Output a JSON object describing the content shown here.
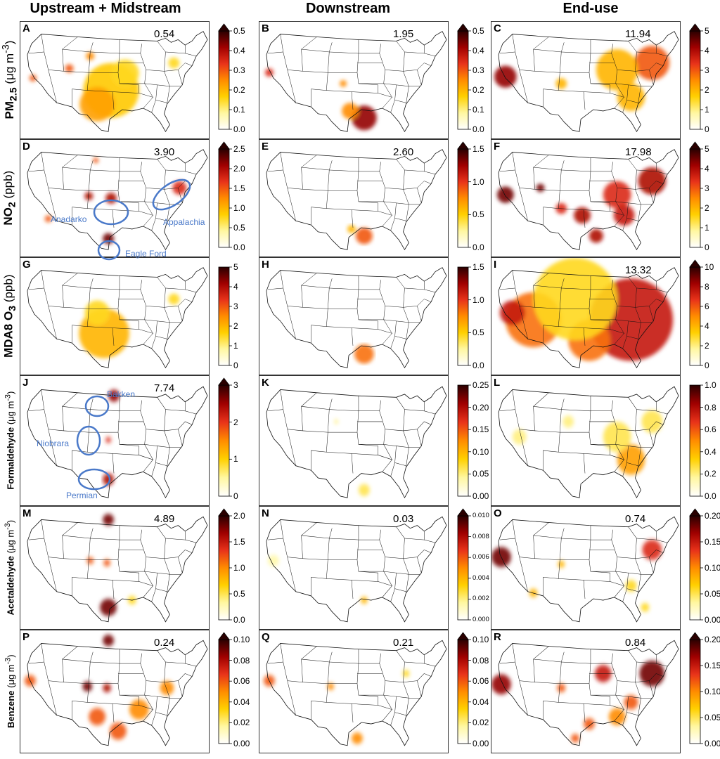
{
  "columns": [
    "Upstream + Midstream",
    "Downstream",
    "End-use"
  ],
  "rows": [
    {
      "label_main": "PM",
      "label_sub": "2.5",
      "label_rest": " (μg m",
      "label_sup": "-3",
      "label_end": ")"
    },
    {
      "label_main": "NO",
      "label_sub": "2",
      "label_rest": " (ppb)",
      "label_sup": "",
      "label_end": ""
    },
    {
      "label_main": "MDA8 O",
      "label_sub": "3",
      "label_rest": " (ppb)",
      "label_sup": "",
      "label_end": ""
    },
    {
      "label_main": "Formaldehyde",
      "label_sub": "",
      "label_rest": " (μg m",
      "label_sup": "-3",
      "label_end": ")"
    },
    {
      "label_main": "Acetaldehyde",
      "label_sub": "",
      "label_rest": " (μg m",
      "label_sup": "-3",
      "label_end": ")"
    },
    {
      "label_main": "Benzene",
      "label_sub": "",
      "label_rest": " (μg m",
      "label_sup": "-3",
      "label_end": ")"
    }
  ],
  "panels": [
    {
      "letter": "A",
      "total": "0.54",
      "ticks": [
        "0.5",
        "0.4",
        "0.3",
        "0.2",
        "0.1",
        "0.0"
      ],
      "arrow": true,
      "small": false
    },
    {
      "letter": "B",
      "total": "1.95",
      "ticks": [
        "0.5",
        "0.4",
        "0.3",
        "0.2",
        "0.1",
        "0.0"
      ],
      "arrow": true,
      "small": false
    },
    {
      "letter": "C",
      "total": "11.94",
      "ticks": [
        "5",
        "4",
        "3",
        "2",
        "1",
        "0"
      ],
      "arrow": true,
      "small": false
    },
    {
      "letter": "D",
      "total": "3.90",
      "ticks": [
        "2.5",
        "2.0",
        "1.5",
        "1.0",
        "0.5",
        "0.0"
      ],
      "arrow": true,
      "small": false
    },
    {
      "letter": "E",
      "total": "2.60",
      "ticks": [
        "1.5",
        "1.0",
        "0.5",
        "0.0"
      ],
      "arrow": true,
      "small": false
    },
    {
      "letter": "F",
      "total": "17.98",
      "ticks": [
        "5",
        "4",
        "3",
        "2",
        "1",
        "0"
      ],
      "arrow": true,
      "small": false
    },
    {
      "letter": "G",
      "total": "",
      "ticks": [
        "5",
        "4",
        "3",
        "2",
        "1",
        "0"
      ],
      "arrow": false,
      "small": false
    },
    {
      "letter": "H",
      "total": "",
      "ticks": [
        "1.5",
        "1.0",
        "0.5",
        "0.0"
      ],
      "arrow": false,
      "small": false
    },
    {
      "letter": "I",
      "total": "13.32",
      "ticks": [
        "10",
        "8",
        "6",
        "4",
        "2",
        "0"
      ],
      "arrow": true,
      "small": false
    },
    {
      "letter": "J",
      "total": "7.74",
      "ticks": [
        "3",
        "2",
        "1",
        "0"
      ],
      "arrow": true,
      "small": false
    },
    {
      "letter": "K",
      "total": "",
      "ticks": [
        "0.25",
        "0.20",
        "0.15",
        "0.10",
        "0.05",
        "0.00"
      ],
      "arrow": false,
      "small": false
    },
    {
      "letter": "L",
      "total": "",
      "ticks": [
        "1.0",
        "0.8",
        "0.6",
        "0.4",
        "0.2",
        "0.0"
      ],
      "arrow": false,
      "small": false
    },
    {
      "letter": "M",
      "total": "4.89",
      "ticks": [
        "2.0",
        "1.5",
        "1.0",
        "0.5",
        "0.0"
      ],
      "arrow": true,
      "small": false
    },
    {
      "letter": "N",
      "total": "0.03",
      "ticks": [
        "0.010",
        "0.008",
        "0.006",
        "0.004",
        "0.002",
        "0.000"
      ],
      "arrow": true,
      "small": true
    },
    {
      "letter": "O",
      "total": "0.74",
      "ticks": [
        "0.20",
        "0.15",
        "0.10",
        "0.05",
        "0.00"
      ],
      "arrow": true,
      "small": false
    },
    {
      "letter": "P",
      "total": "0.24",
      "ticks": [
        "0.10",
        "0.08",
        "0.06",
        "0.04",
        "0.02",
        "0.00"
      ],
      "arrow": true,
      "small": false
    },
    {
      "letter": "Q",
      "total": "0.21",
      "ticks": [
        "0.10",
        "0.08",
        "0.06",
        "0.04",
        "0.02",
        "0.00"
      ],
      "arrow": true,
      "small": false
    },
    {
      "letter": "R",
      "total": "0.84",
      "ticks": [
        "0.20",
        "0.15",
        "0.10",
        "0.05",
        "0.00"
      ],
      "arrow": true,
      "small": false
    }
  ],
  "basins": {
    "anadarko": "Anadarko",
    "appalachia": "Appalachia",
    "eagle_ford": "Eagle Ford",
    "bakken": "Bakken",
    "niobrara": "Niobrara",
    "permian": "Permian"
  },
  "colors": {
    "basin_outline": "#4a79c9",
    "cmap": [
      "#ffffff",
      "#fff7a0",
      "#ffd000",
      "#ff8c00",
      "#e8331a",
      "#a00000",
      "#2a0000"
    ]
  }
}
